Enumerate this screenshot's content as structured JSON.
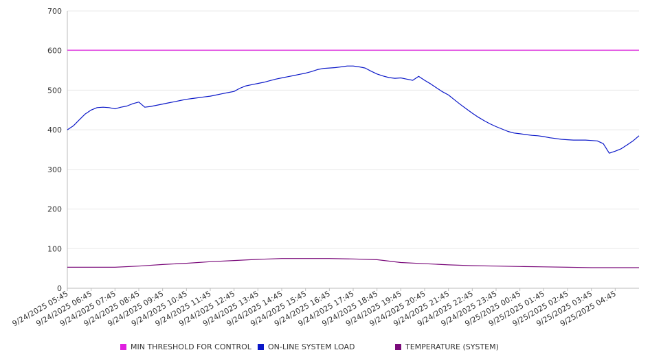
{
  "chart_data": {
    "type": "line",
    "title": "",
    "xlabel": "",
    "ylabel": "",
    "ylim": [
      0,
      700
    ],
    "yticks": [
      0,
      100,
      200,
      300,
      400,
      500,
      600,
      700
    ],
    "xticks": [
      "9/24/2025 05:45",
      "9/24/2025 06:45",
      "9/24/2025 07:45",
      "9/24/2025 08:45",
      "9/24/2025 09:45",
      "9/24/2025 10:45",
      "9/24/2025 11:45",
      "9/24/2025 12:45",
      "9/24/2025 13:45",
      "9/24/2025 14:45",
      "9/24/2025 15:45",
      "9/24/2025 16:45",
      "9/24/2025 17:45",
      "9/24/2025 18:45",
      "9/24/2025 19:45",
      "9/24/2025 20:45",
      "9/24/2025 21:45",
      "9/24/2025 22:45",
      "9/24/2025 23:45",
      "9/25/2025 00:45",
      "9/25/2025 01:45",
      "9/25/2025 02:45",
      "9/25/2025 03:45",
      "9/25/2025 04:45"
    ],
    "x_end": "9/25/2025 05:45",
    "grid": true,
    "legend_position": "bottom",
    "series": [
      {
        "name": "MIN THRESHOLD FOR CONTROL",
        "color": "#e020e0",
        "points": [
          [
            "9/24/2025 05:45",
            601
          ],
          [
            "9/25/2025 05:45",
            601
          ]
        ]
      },
      {
        "name": "ON-LINE SYSTEM LOAD",
        "color": "#0a17c8",
        "points": [
          [
            "9/24/2025 05:45",
            400
          ],
          [
            "9/24/2025 06:00",
            410
          ],
          [
            "9/24/2025 06:15",
            425
          ],
          [
            "9/24/2025 06:30",
            440
          ],
          [
            "9/24/2025 06:45",
            450
          ],
          [
            "9/24/2025 07:00",
            456
          ],
          [
            "9/24/2025 07:15",
            457
          ],
          [
            "9/24/2025 07:30",
            456
          ],
          [
            "9/24/2025 07:45",
            453
          ],
          [
            "9/24/2025 08:00",
            457
          ],
          [
            "9/24/2025 08:15",
            460
          ],
          [
            "9/24/2025 08:30",
            466
          ],
          [
            "9/24/2025 08:45",
            470
          ],
          [
            "9/24/2025 09:00",
            457
          ],
          [
            "9/24/2025 09:15",
            459
          ],
          [
            "9/24/2025 09:30",
            462
          ],
          [
            "9/24/2025 09:45",
            465
          ],
          [
            "9/24/2025 10:00",
            468
          ],
          [
            "9/24/2025 10:15",
            471
          ],
          [
            "9/24/2025 10:30",
            474
          ],
          [
            "9/24/2025 10:45",
            477
          ],
          [
            "9/24/2025 11:00",
            479
          ],
          [
            "9/24/2025 11:15",
            481
          ],
          [
            "9/24/2025 11:30",
            483
          ],
          [
            "9/24/2025 11:45",
            485
          ],
          [
            "9/24/2025 12:00",
            488
          ],
          [
            "9/24/2025 12:15",
            491
          ],
          [
            "9/24/2025 12:30",
            494
          ],
          [
            "9/24/2025 12:45",
            497
          ],
          [
            "9/24/2025 13:00",
            505
          ],
          [
            "9/24/2025 13:15",
            511
          ],
          [
            "9/24/2025 13:30",
            514
          ],
          [
            "9/24/2025 13:45",
            517
          ],
          [
            "9/24/2025 14:00",
            520
          ],
          [
            "9/24/2025 14:15",
            524
          ],
          [
            "9/24/2025 14:30",
            528
          ],
          [
            "9/24/2025 14:45",
            531
          ],
          [
            "9/24/2025 15:00",
            534
          ],
          [
            "9/24/2025 15:15",
            537
          ],
          [
            "9/24/2025 15:30",
            540
          ],
          [
            "9/24/2025 15:45",
            543
          ],
          [
            "9/24/2025 16:00",
            547
          ],
          [
            "9/24/2025 16:15",
            552
          ],
          [
            "9/24/2025 16:30",
            555
          ],
          [
            "9/24/2025 16:45",
            556
          ],
          [
            "9/24/2025 17:00",
            557
          ],
          [
            "9/24/2025 17:15",
            559
          ],
          [
            "9/24/2025 17:30",
            561
          ],
          [
            "9/24/2025 17:45",
            561
          ],
          [
            "9/24/2025 18:00",
            559
          ],
          [
            "9/24/2025 18:15",
            556
          ],
          [
            "9/24/2025 18:30",
            548
          ],
          [
            "9/24/2025 18:45",
            541
          ],
          [
            "9/24/2025 19:00",
            536
          ],
          [
            "9/24/2025 19:15",
            532
          ],
          [
            "9/24/2025 19:30",
            530
          ],
          [
            "9/24/2025 19:45",
            531
          ],
          [
            "9/24/2025 20:00",
            528
          ],
          [
            "9/24/2025 20:15",
            525
          ],
          [
            "9/24/2025 20:30",
            535
          ],
          [
            "9/24/2025 20:45",
            525
          ],
          [
            "9/24/2025 21:00",
            516
          ],
          [
            "9/24/2025 21:15",
            506
          ],
          [
            "9/24/2025 21:30",
            496
          ],
          [
            "9/24/2025 21:45",
            488
          ],
          [
            "9/24/2025 22:00",
            476
          ],
          [
            "9/24/2025 22:15",
            464
          ],
          [
            "9/24/2025 22:30",
            453
          ],
          [
            "9/24/2025 22:45",
            442
          ],
          [
            "9/24/2025 23:00",
            432
          ],
          [
            "9/24/2025 23:15",
            423
          ],
          [
            "9/24/2025 23:30",
            415
          ],
          [
            "9/24/2025 23:45",
            408
          ],
          [
            "9/25/2025 00:00",
            402
          ],
          [
            "9/25/2025 00:15",
            396
          ],
          [
            "9/25/2025 00:30",
            392
          ],
          [
            "9/25/2025 00:45",
            390
          ],
          [
            "9/25/2025 01:00",
            388
          ],
          [
            "9/25/2025 01:15",
            386
          ],
          [
            "9/25/2025 01:30",
            385
          ],
          [
            "9/25/2025 01:45",
            383
          ],
          [
            "9/25/2025 02:00",
            380
          ],
          [
            "9/25/2025 02:15",
            378
          ],
          [
            "9/25/2025 02:30",
            376
          ],
          [
            "9/25/2025 02:45",
            375
          ],
          [
            "9/25/2025 03:00",
            374
          ],
          [
            "9/25/2025 03:15",
            374
          ],
          [
            "9/25/2025 03:30",
            374
          ],
          [
            "9/25/2025 03:45",
            373
          ],
          [
            "9/25/2025 04:00",
            372
          ],
          [
            "9/25/2025 04:15",
            365
          ],
          [
            "9/25/2025 04:30",
            341
          ],
          [
            "9/25/2025 04:45",
            346
          ],
          [
            "9/25/2025 05:00",
            352
          ],
          [
            "9/25/2025 05:15",
            362
          ],
          [
            "9/25/2025 05:30",
            372
          ],
          [
            "9/25/2025 05:45",
            385
          ]
        ]
      },
      {
        "name": "TEMPERATURE (SYSTEM)",
        "color": "#7a0a7a",
        "points": [
          [
            "9/24/2025 05:45",
            53
          ],
          [
            "9/24/2025 07:45",
            53
          ],
          [
            "9/24/2025 08:45",
            56
          ],
          [
            "9/24/2025 09:45",
            60
          ],
          [
            "9/24/2025 10:45",
            63
          ],
          [
            "9/24/2025 11:45",
            67
          ],
          [
            "9/24/2025 12:45",
            70
          ],
          [
            "9/24/2025 13:45",
            73
          ],
          [
            "9/24/2025 14:45",
            75
          ],
          [
            "9/24/2025 15:45",
            75
          ],
          [
            "9/24/2025 16:45",
            75
          ],
          [
            "9/24/2025 17:45",
            74
          ],
          [
            "9/24/2025 18:45",
            72
          ],
          [
            "9/24/2025 19:45",
            65
          ],
          [
            "9/24/2025 20:45",
            62
          ],
          [
            "9/24/2025 21:45",
            59
          ],
          [
            "9/24/2025 22:45",
            57
          ],
          [
            "9/24/2025 23:45",
            56
          ],
          [
            "9/25/2025 00:45",
            55
          ],
          [
            "9/25/2025 01:45",
            54
          ],
          [
            "9/25/2025 02:45",
            53
          ],
          [
            "9/25/2025 03:45",
            52
          ],
          [
            "9/25/2025 04:45",
            52
          ],
          [
            "9/25/2025 05:45",
            52
          ]
        ]
      }
    ]
  }
}
